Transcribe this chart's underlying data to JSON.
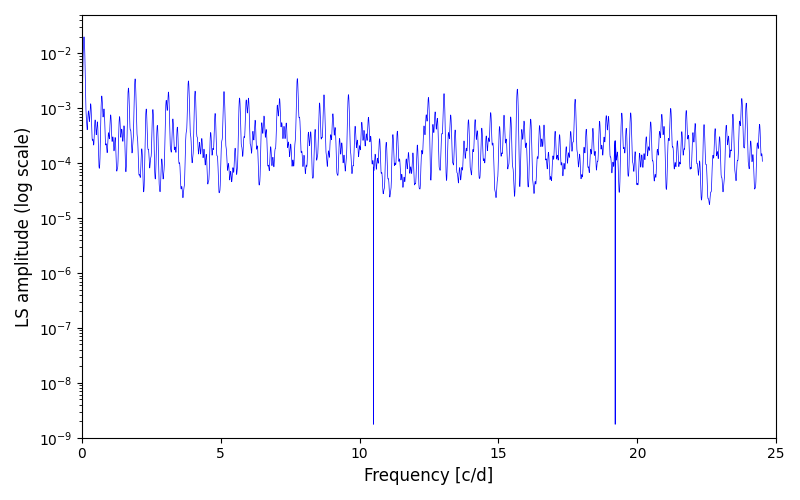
{
  "xlabel": "Frequency [c/d]",
  "ylabel": "LS amplitude (log scale)",
  "xlim": [
    0,
    25
  ],
  "ylim": [
    1e-09,
    0.05
  ],
  "line_color": "#0000ff",
  "line_width": 0.5,
  "freq_max": 24.5,
  "n_points": 8000,
  "seed": 7,
  "background_color": "#ffffff",
  "figsize": [
    8.0,
    5.0
  ],
  "dpi": 100,
  "xticks": [
    0,
    5,
    10,
    15,
    20,
    25
  ]
}
